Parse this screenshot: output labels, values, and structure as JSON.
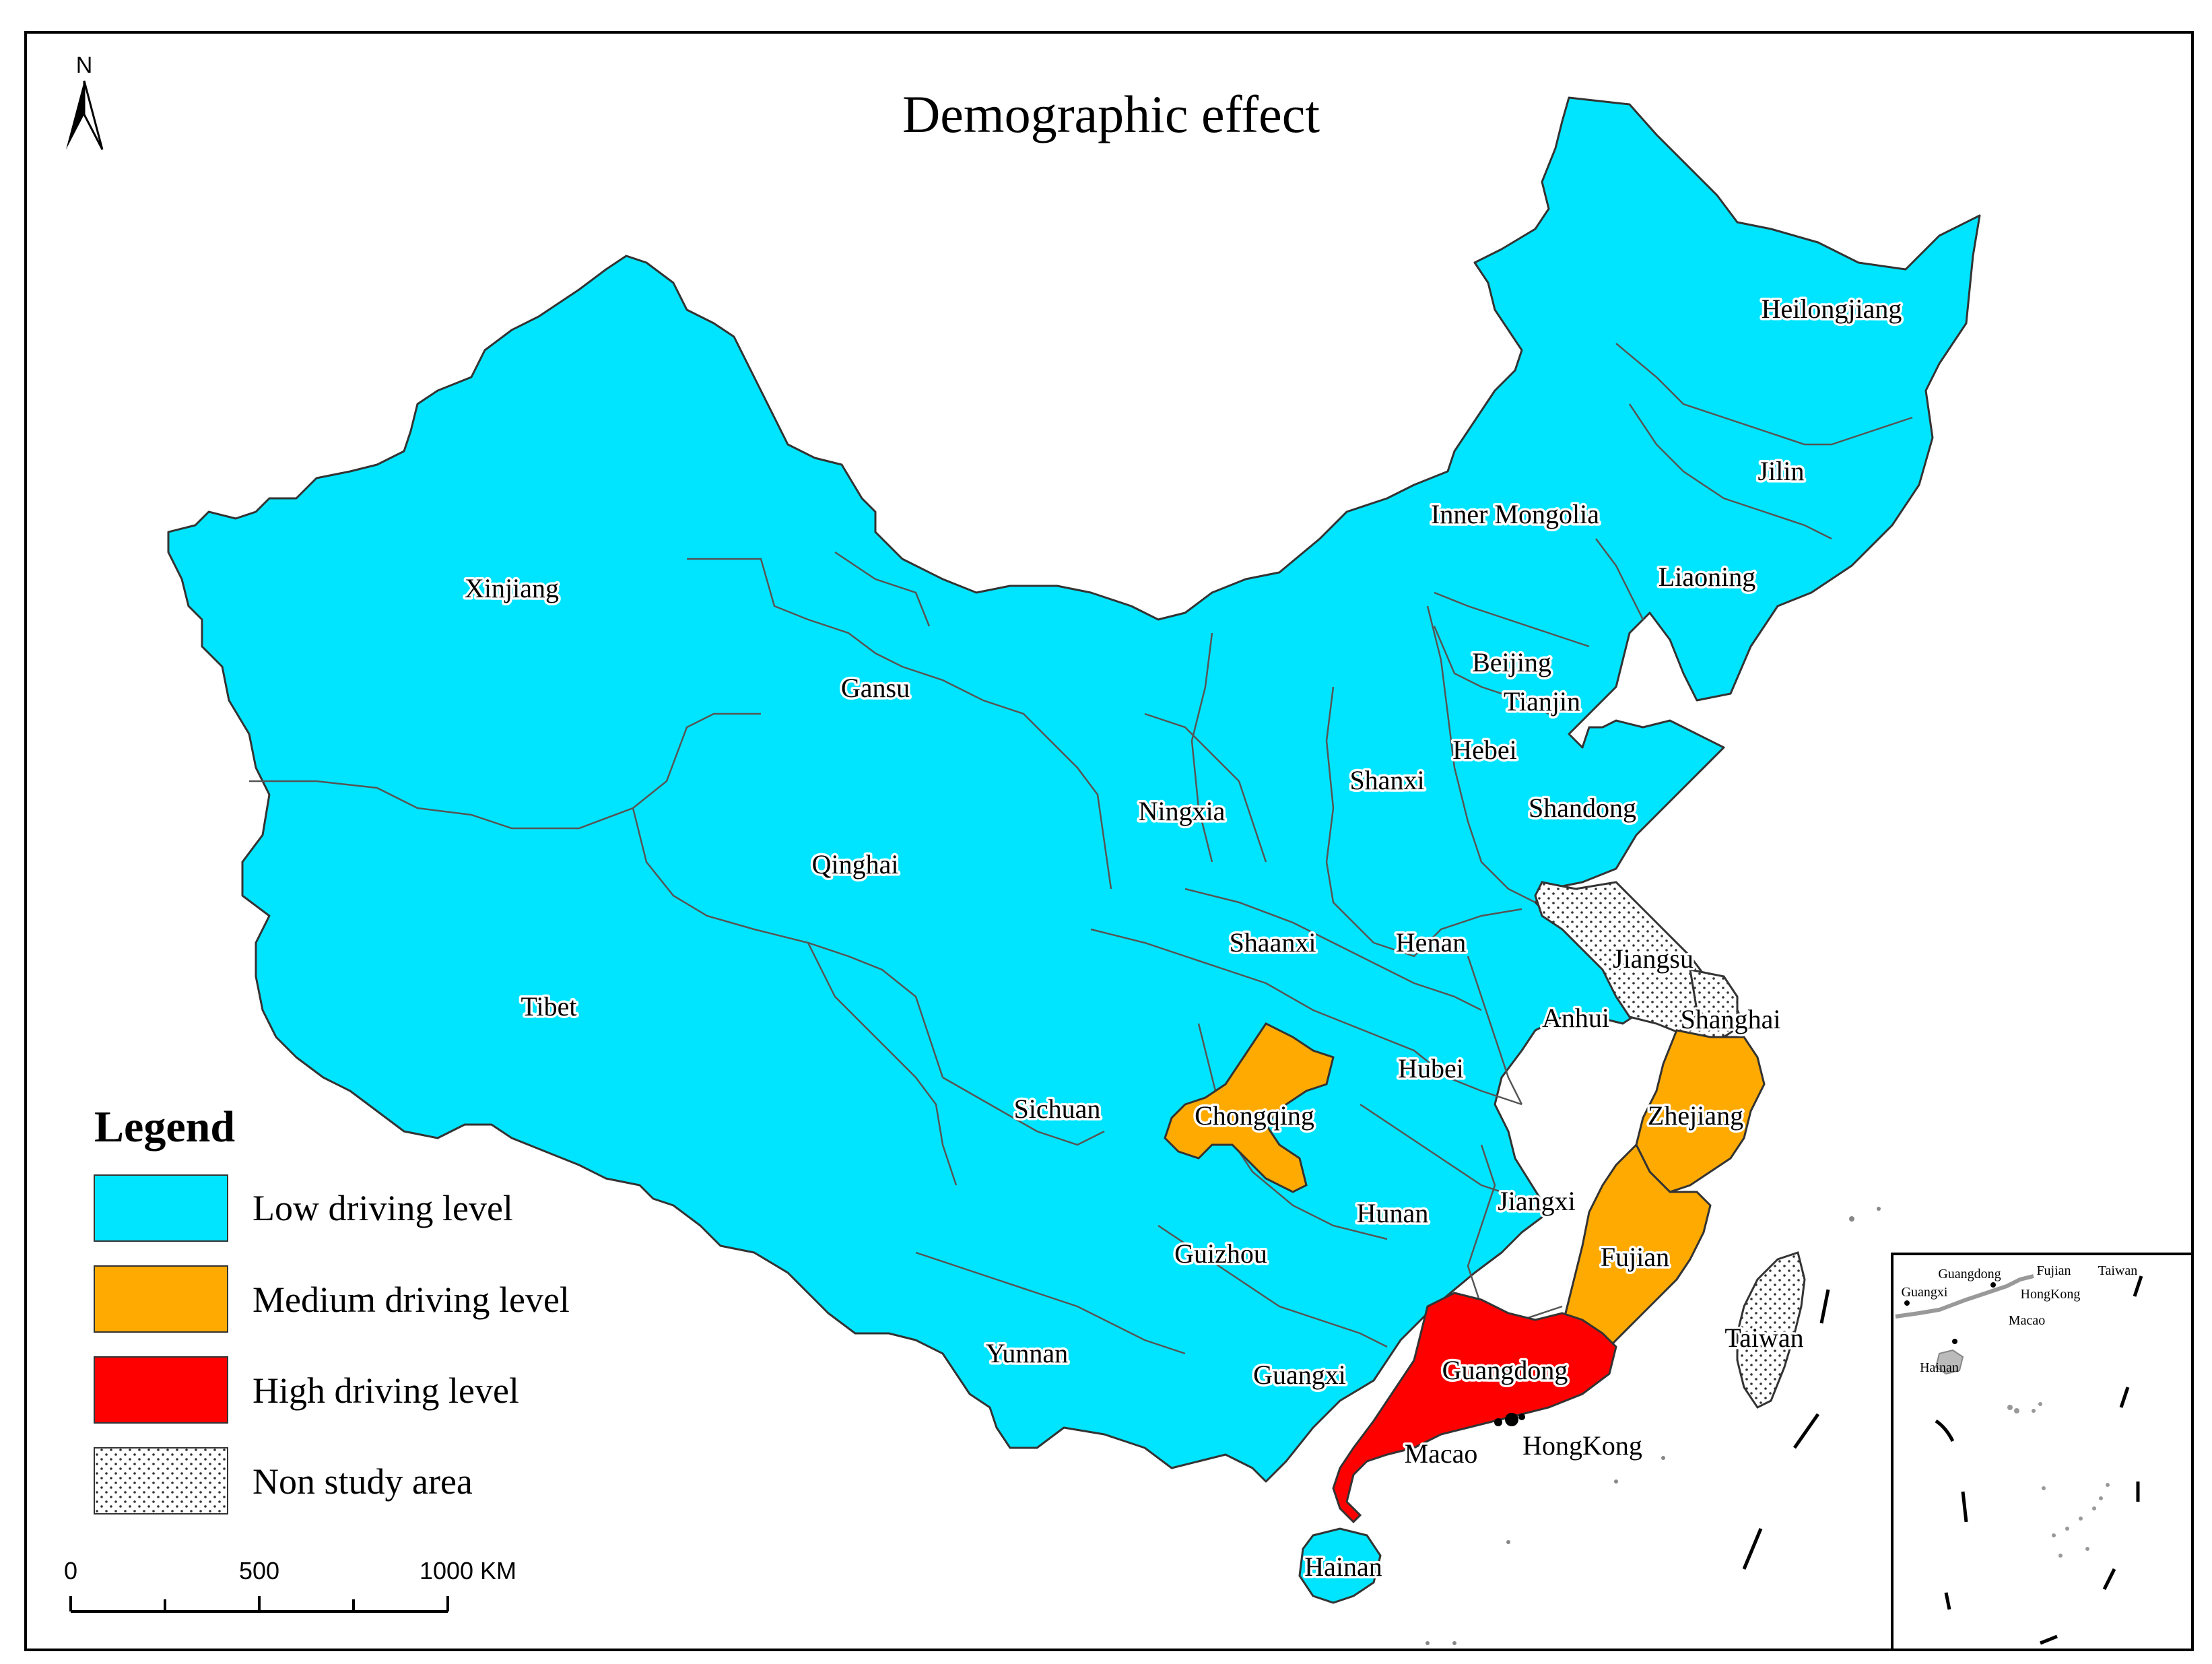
{
  "map": {
    "title": "Demographic effect",
    "north_arrow_label": "N",
    "colors": {
      "low": "#00E5FF",
      "medium": "#FFAA00",
      "high": "#FF0000",
      "border": "#555555",
      "frame": "#000000"
    },
    "legend": {
      "title": "Legend",
      "items": [
        {
          "label": "Low driving level",
          "color": "#00E5FF"
        },
        {
          "label": "Medium driving level",
          "color": "#FFAA00"
        },
        {
          "label": "High driving level",
          "color": "#FF0000"
        },
        {
          "label": "Non study area",
          "pattern": "dots"
        }
      ]
    },
    "scale_bar": {
      "ticks": [
        "0",
        "500",
        "1000 KM"
      ]
    },
    "regions": [
      {
        "name": "Heilongjiang",
        "level": "low"
      },
      {
        "name": "Jilin",
        "level": "low"
      },
      {
        "name": "Inner Mongolia",
        "level": "low"
      },
      {
        "name": "Liaoning",
        "level": "low"
      },
      {
        "name": "Xinjiang",
        "level": "low"
      },
      {
        "name": "Beijing",
        "level": "low"
      },
      {
        "name": "Tianjin",
        "level": "low"
      },
      {
        "name": "Gansu",
        "level": "low"
      },
      {
        "name": "Hebei",
        "level": "low"
      },
      {
        "name": "Shanxi",
        "level": "low"
      },
      {
        "name": "Shandong",
        "level": "low"
      },
      {
        "name": "Ningxia",
        "level": "low"
      },
      {
        "name": "Qinghai",
        "level": "low"
      },
      {
        "name": "Shaanxi",
        "level": "low"
      },
      {
        "name": "Henan",
        "level": "low"
      },
      {
        "name": "Jiangsu",
        "level": "non-study"
      },
      {
        "name": "Tibet",
        "level": "low"
      },
      {
        "name": "Anhui",
        "level": "low"
      },
      {
        "name": "Shanghai",
        "level": "non-study"
      },
      {
        "name": "Hubei",
        "level": "low"
      },
      {
        "name": "Sichuan",
        "level": "low"
      },
      {
        "name": "Chongqing",
        "level": "medium"
      },
      {
        "name": "Zhejiang",
        "level": "medium"
      },
      {
        "name": "Hunan",
        "level": "low"
      },
      {
        "name": "Jiangxi",
        "level": "low"
      },
      {
        "name": "Fujian",
        "level": "medium"
      },
      {
        "name": "Guizhou",
        "level": "low"
      },
      {
        "name": "Taiwan",
        "level": "non-study"
      },
      {
        "name": "Yunnan",
        "level": "low"
      },
      {
        "name": "Guangxi",
        "level": "low"
      },
      {
        "name": "Guangdong",
        "level": "high"
      },
      {
        "name": "Macao",
        "level": "non-study"
      },
      {
        "name": "HongKong",
        "level": "non-study"
      },
      {
        "name": "Hainan",
        "level": "low"
      }
    ],
    "inset": {
      "labels": [
        "Guangdong",
        "Fujian",
        "Taiwan",
        "Guangxi",
        "HongKong",
        "Macao",
        "Hainan"
      ]
    }
  }
}
